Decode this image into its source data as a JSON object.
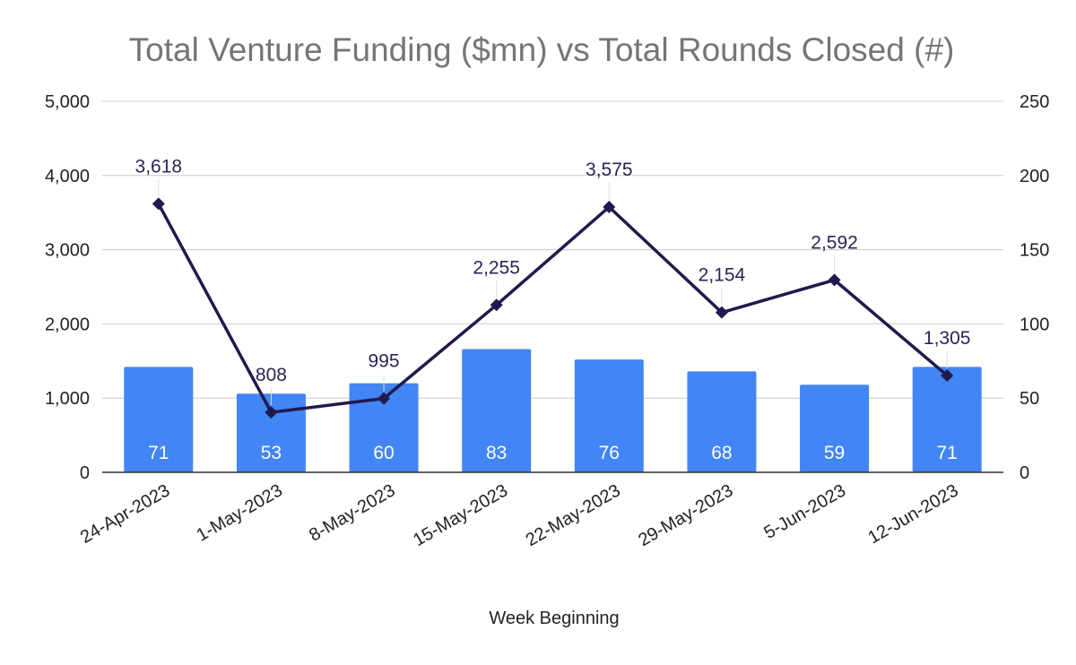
{
  "chart_data": {
    "type": "bar",
    "title": "Total Venture Funding ($mn) vs Total Rounds Closed (#)",
    "xlabel": "Week Beginning",
    "ylabel": "",
    "categories": [
      "24-Apr-2023",
      "1-May-2023",
      "8-May-2023",
      "15-May-2023",
      "22-May-2023",
      "29-May-2023",
      "5-Jun-2023",
      "12-Jun-2023"
    ],
    "series": [
      {
        "name": "Total Venture Funding ($mn)",
        "type": "line",
        "axis": "left",
        "color": "#1f1a4e",
        "values": [
          3618,
          808,
          995,
          2255,
          3575,
          2154,
          2592,
          1305
        ],
        "labels": [
          "3,618",
          "808",
          "995",
          "2,255",
          "3,575",
          "2,154",
          "2,592",
          "1,305"
        ]
      },
      {
        "name": "Total Rounds Closed (#)",
        "type": "bar",
        "axis": "right",
        "color": "#4285f4",
        "values": [
          71,
          53,
          60,
          83,
          76,
          68,
          59,
          71
        ],
        "labels": [
          "71",
          "53",
          "60",
          "83",
          "76",
          "68",
          "59",
          "71"
        ]
      }
    ],
    "y_left": {
      "ylim": [
        0,
        5000
      ],
      "ticks": [
        0,
        1000,
        2000,
        3000,
        4000,
        5000
      ],
      "tick_labels": [
        "0",
        "1,000",
        "2,000",
        "3,000",
        "4,000",
        "5,000"
      ]
    },
    "y_right": {
      "ylim": [
        0,
        250
      ],
      "ticks": [
        0,
        50,
        100,
        150,
        200,
        250
      ],
      "tick_labels": [
        "0",
        "50",
        "100",
        "150",
        "200",
        "250"
      ]
    },
    "grid": true
  }
}
